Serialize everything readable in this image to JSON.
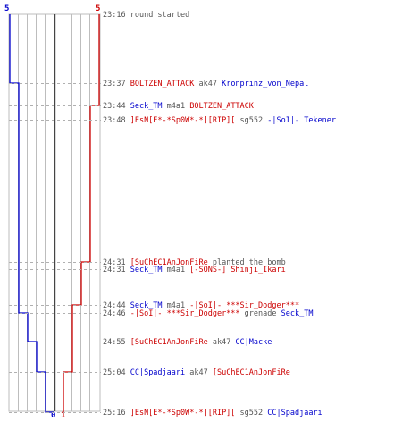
{
  "colors": {
    "team_a": "#0000cc",
    "team_b": "#cc0000",
    "neutral": "#555555",
    "grid": "#bdbdbd",
    "center_line": "#444444",
    "dash": "#b0b0b0"
  },
  "chart_data": {
    "type": "line",
    "title": "",
    "xlabel": "",
    "ylabel": "",
    "scale": {
      "min": 0,
      "max": 5,
      "top_labels": [
        "5",
        "5"
      ],
      "bottom_labels": [
        "0",
        "1"
      ]
    },
    "series": [
      {
        "team": "team_a",
        "values": [
          5,
          5,
          4,
          4,
          4,
          3,
          2,
          2,
          0
        ]
      },
      {
        "team": "team_b",
        "values": [
          5,
          5,
          5,
          5,
          4,
          4,
          3,
          3,
          2,
          1
        ]
      }
    ],
    "events": [
      {
        "time": "23:16",
        "parts": [
          {
            "text": "round started",
            "team": "neutral"
          }
        ]
      },
      {
        "time": "23:37",
        "parts": [
          {
            "text": "BOLTZEN_ATTACK",
            "team": "team_b"
          },
          {
            "text": "ak47",
            "team": "neutral"
          },
          {
            "text": "Kronprinz_von_Nepal",
            "team": "team_a"
          }
        ]
      },
      {
        "time": "23:44",
        "parts": [
          {
            "text": "Seck_TM",
            "team": "team_a"
          },
          {
            "text": "m4a1",
            "team": "neutral"
          },
          {
            "text": "BOLTZEN_ATTACK",
            "team": "team_b"
          }
        ]
      },
      {
        "time": "23:48",
        "parts": [
          {
            "text": "]EsN[E*-*Sp0W*-*][RIP][",
            "team": "team_b"
          },
          {
            "text": "sg552",
            "team": "neutral"
          },
          {
            "text": "-|SoI|- Tekener",
            "team": "team_a"
          }
        ]
      },
      {
        "time": "24:31",
        "parts": [
          {
            "text": "[SuChEC1AnJonFiRe",
            "team": "team_b"
          },
          {
            "text": "planted the bomb",
            "team": "neutral"
          }
        ]
      },
      {
        "time": "24:31",
        "parts": [
          {
            "text": "Seck_TM",
            "team": "team_a"
          },
          {
            "text": "m4a1",
            "team": "neutral"
          },
          {
            "text": "[-SONS-] Shinji_Ikari",
            "team": "team_b"
          }
        ]
      },
      {
        "time": "24:44",
        "parts": [
          {
            "text": "Seck_TM",
            "team": "team_a"
          },
          {
            "text": "m4a1",
            "team": "neutral"
          },
          {
            "text": "-|SoI|- ***Sir_Dodger***",
            "team": "team_b"
          }
        ]
      },
      {
        "time": "24:46",
        "parts": [
          {
            "text": "-|SoI|- ***Sir_Dodger***",
            "team": "team_b"
          },
          {
            "text": "grenade",
            "team": "neutral"
          },
          {
            "text": "Seck_TM",
            "team": "team_a"
          }
        ]
      },
      {
        "time": "24:55",
        "parts": [
          {
            "text": "[SuChEC1AnJonFiRe",
            "team": "team_b"
          },
          {
            "text": "ak47",
            "team": "neutral"
          },
          {
            "text": "CC|Macke",
            "team": "team_a"
          }
        ]
      },
      {
        "time": "25:04",
        "parts": [
          {
            "text": "CC|Spadjaari",
            "team": "team_a"
          },
          {
            "text": "ak47",
            "team": "neutral"
          },
          {
            "text": "[SuChEC1AnJonFiRe",
            "team": "team_b"
          }
        ]
      },
      {
        "time": "25:16",
        "parts": [
          {
            "text": "]EsN[E*-*Sp0W*-*][RIP][",
            "team": "team_b"
          },
          {
            "text": "sg552",
            "team": "neutral"
          },
          {
            "text": "CC|Spadjaari",
            "team": "team_a"
          }
        ]
      }
    ]
  }
}
